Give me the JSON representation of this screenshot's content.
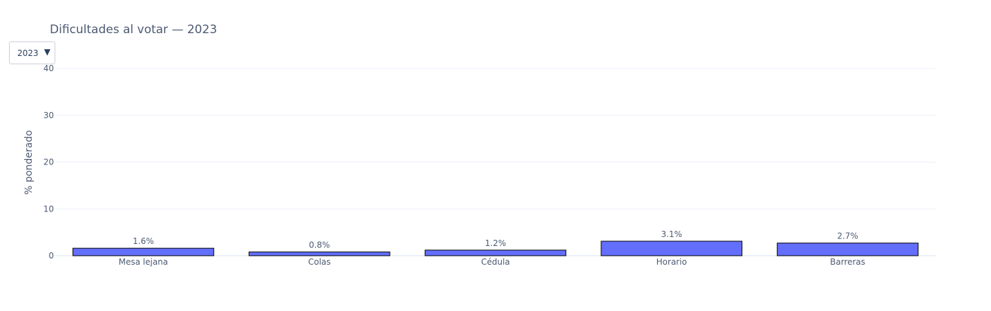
{
  "dropdown": {
    "selected": "2023",
    "arrow_icon": "triangle-down-icon"
  },
  "chart_data": {
    "type": "bar",
    "title": "Dificultades al votar — 2023",
    "xlabel": "",
    "ylabel": "% ponderado",
    "ylim": [
      0,
      40
    ],
    "yticks": [
      0,
      10,
      20,
      30,
      40
    ],
    "grid": true,
    "categories": [
      "Mesa lejana",
      "Colas",
      "Cédula",
      "Horario",
      "Barreras"
    ],
    "values": [
      1.6,
      0.8,
      1.2,
      3.1,
      2.7
    ],
    "data_labels": [
      "1.6%",
      "0.8%",
      "1.2%",
      "3.1%",
      "2.7%"
    ],
    "bar_color": "#636efa",
    "bar_outline": "#000000"
  }
}
